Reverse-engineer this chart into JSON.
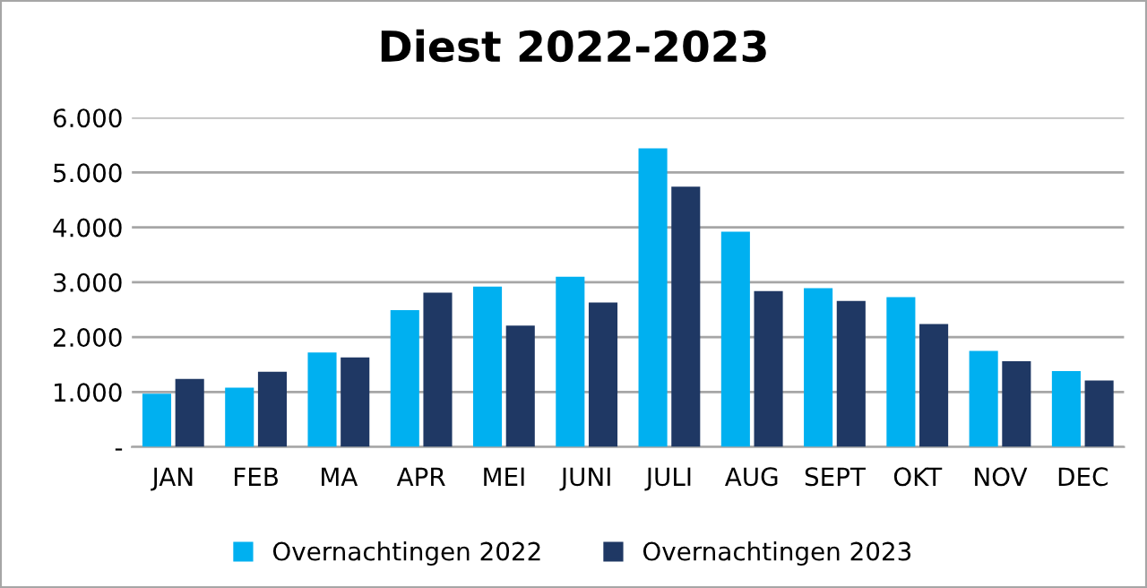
{
  "chart_data": {
    "type": "bar",
    "title": "Diest 2022-2023",
    "categories": [
      "JAN",
      "FEB",
      "MA",
      "APR",
      "MEI",
      "JUNI",
      "JULI",
      "AUG",
      "SEPT",
      "OKT",
      "NOV",
      "DEC"
    ],
    "series": [
      {
        "name": "Overnachtingen 2022",
        "color": "#00b0f0",
        "values": [
          970,
          1080,
          1720,
          2490,
          2920,
          3100,
          5440,
          3920,
          2890,
          2730,
          1750,
          1380
        ]
      },
      {
        "name": "Overnachtingen 2023",
        "color": "#1f3864",
        "values": [
          1240,
          1370,
          1630,
          2810,
          2210,
          2630,
          4740,
          2840,
          2660,
          2240,
          1560,
          1210
        ]
      }
    ],
    "ylim": [
      0,
      6000
    ],
    "yticks": [
      {
        "value": 0,
        "label": "-"
      },
      {
        "value": 1000,
        "label": "1.000"
      },
      {
        "value": 2000,
        "label": "2.000"
      },
      {
        "value": 3000,
        "label": "3.000"
      },
      {
        "value": 4000,
        "label": "4.000"
      },
      {
        "value": 5000,
        "label": "5.000"
      },
      {
        "value": 6000,
        "label": "6.000"
      }
    ],
    "grid": "y",
    "legend": "bottom"
  }
}
